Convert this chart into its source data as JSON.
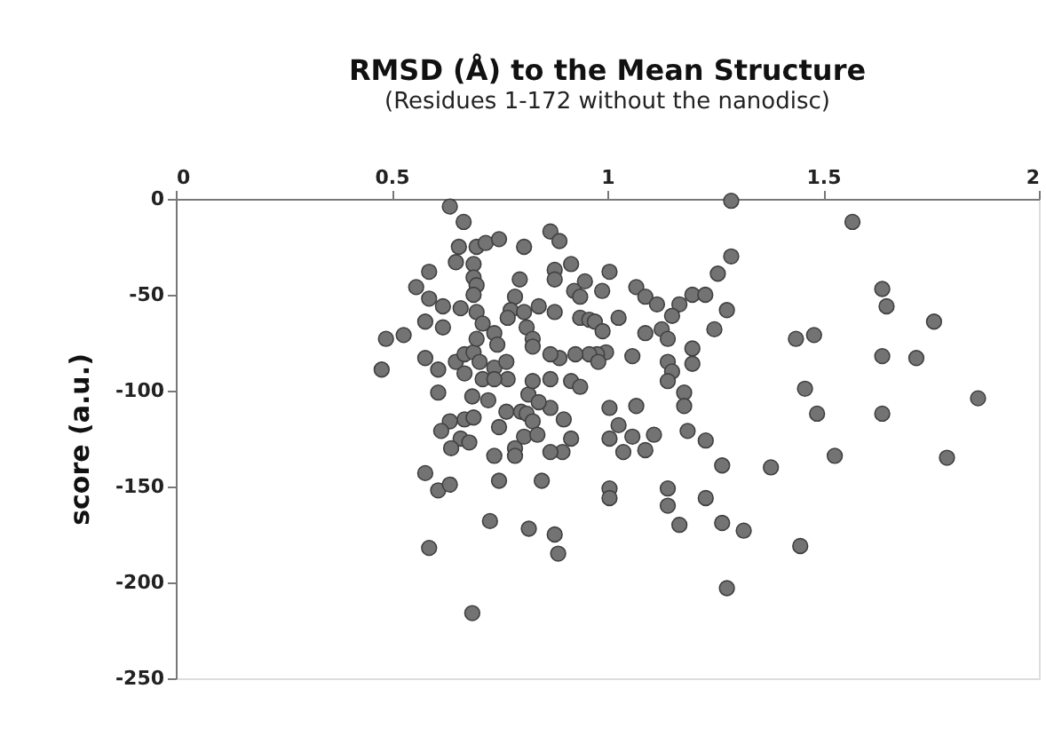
{
  "chart_data": {
    "type": "scatter",
    "title": "RMSD (Å) to the Mean Structure",
    "subtitle": "(Residues 1-172 without the nanodisc)",
    "ylabel": "score (a.u.)",
    "xlim": [
      0,
      2
    ],
    "xticks": [
      0,
      0.5,
      1,
      1.5,
      2
    ],
    "ylim": [
      -250,
      0
    ],
    "yticks": [
      -250,
      -200,
      -150,
      -100,
      -50,
      0
    ],
    "grid": false,
    "legend": false,
    "marker": "circle",
    "series": [
      {
        "color": "#737373",
        "x": [
          1.568,
          1.637,
          1.647,
          1.757,
          1.437,
          1.479,
          1.637,
          1.716,
          1.458,
          1.486,
          1.637,
          1.859,
          1.527,
          1.787,
          1.379,
          1.447,
          1.287,
          1.287,
          1.256,
          1.277,
          1.248,
          1.197,
          1.197,
          1.14,
          1.15,
          1.14,
          1.178,
          1.178,
          1.186,
          1.228,
          1.266,
          1.14,
          1.14,
          1.228,
          1.167,
          1.266,
          1.316,
          1.277,
          1.005,
          1.067,
          1.088,
          1.115,
          1.167,
          1.197,
          1.227,
          1.15,
          0.988,
          1.026,
          1.088,
          1.126,
          1.14,
          1.058,
          1.005,
          1.067,
          1.026,
          1.005,
          1.058,
          1.108,
          1.037,
          1.088,
          1.005,
          1.005,
          0.878,
          0.886,
          0.868,
          0.889,
          0.878,
          0.878,
          0.916,
          0.923,
          0.937,
          0.948,
          0.878,
          0.937,
          0.958,
          0.971,
          0.989,
          0.997,
          0.976,
          0.958,
          0.926,
          0.889,
          0.868,
          0.979,
          0.868,
          0.916,
          0.937,
          0.899,
          0.868,
          0.916,
          0.896,
          0.868,
          0.848,
          0.635,
          0.667,
          0.656,
          0.697,
          0.718,
          0.749,
          0.807,
          0.649,
          0.69,
          0.69,
          0.697,
          0.69,
          0.587,
          0.557,
          0.587,
          0.619,
          0.66,
          0.697,
          0.711,
          0.578,
          0.619,
          0.487,
          0.528,
          0.477,
          0.578,
          0.608,
          0.649,
          0.669,
          0.69,
          0.697,
          0.738,
          0.745,
          0.704,
          0.669,
          0.711,
          0.738,
          0.766,
          0.769,
          0.608,
          0.687,
          0.724,
          0.766,
          0.8,
          0.635,
          0.669,
          0.69,
          0.615,
          0.66,
          0.68,
          0.638,
          0.749,
          0.738,
          0.786,
          0.786,
          0.749,
          0.578,
          0.608,
          0.635,
          0.728,
          0.587,
          0.818,
          0.687,
          0.797,
          0.786,
          0.776,
          0.769,
          0.807,
          0.841,
          0.813,
          0.827,
          0.827,
          0.817,
          0.827,
          0.813,
          0.841,
          0.827,
          0.807,
          0.838,
          0.738
        ],
        "values": [
          -12,
          -47,
          -56,
          -64,
          -73,
          -71,
          -82,
          -83,
          -99,
          -112,
          -112,
          -104,
          -134,
          -135,
          -140,
          -181,
          -1,
          -30,
          -39,
          -58,
          -68,
          -78,
          -86,
          -85,
          -90,
          -95,
          -101,
          -108,
          -121,
          -126,
          -139,
          -151,
          -160,
          -156,
          -170,
          -169,
          -173,
          -203,
          -38,
          -46,
          -51,
          -55,
          -55,
          -50,
          -50,
          -61,
          -48,
          -62,
          -70,
          -68,
          -73,
          -82,
          -109,
          -108,
          -118,
          -125,
          -124,
          -123,
          -132,
          -131,
          -151,
          -156,
          -175,
          -185,
          -17,
          -22,
          -37,
          -42,
          -34,
          -48,
          -51,
          -43,
          -59,
          -62,
          -63,
          -64,
          -69,
          -80,
          -81,
          -81,
          -81,
          -83,
          -81,
          -85,
          -94,
          -95,
          -98,
          -115,
          -109,
          -125,
          -132,
          -132,
          -147,
          -4,
          -12,
          -25,
          -25,
          -23,
          -21,
          -25,
          -33,
          -34,
          -41,
          -45,
          -50,
          -38,
          -46,
          -52,
          -56,
          -57,
          -59,
          -65,
          -64,
          -67,
          -73,
          -71,
          -89,
          -83,
          -89,
          -85,
          -81,
          -80,
          -73,
          -70,
          -76,
          -85,
          -91,
          -94,
          -88,
          -85,
          -94,
          -101,
          -103,
          -105,
          -111,
          -111,
          -116,
          -115,
          -114,
          -121,
          -125,
          -127,
          -130,
          -119,
          -134,
          -130,
          -134,
          -147,
          -143,
          -152,
          -149,
          -168,
          -182,
          -172,
          -216,
          -42,
          -51,
          -58,
          -62,
          -59,
          -56,
          -67,
          -73,
          -77,
          -102,
          -95,
          -112,
          -106,
          -116,
          -124,
          -123,
          -94
        ]
      }
    ]
  }
}
